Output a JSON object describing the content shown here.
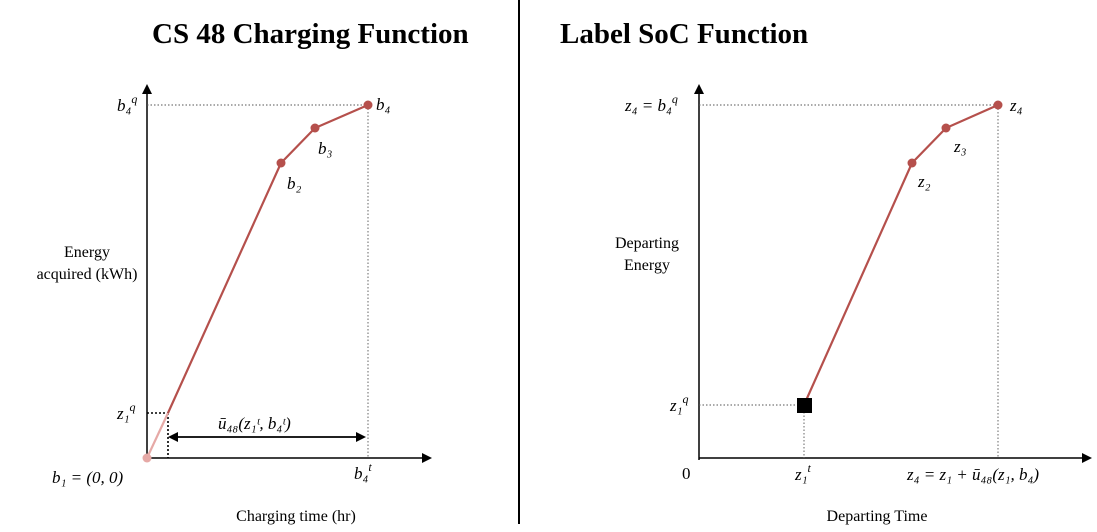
{
  "left_panel": {
    "title": "CS 48 Charging Function",
    "y_axis_label_line1": "Energy",
    "y_axis_label_line2": "acquired (kWh)",
    "x_axis_label": "Charging time (hr)",
    "origin_label": "b₁ = (0, 0)",
    "bar_label": "ū₄₈(z₁ᵗ, b₄ᵗ)",
    "y_tick": "z₁",
    "y_tick_sup": "q",
    "y_tick_top": "b₄",
    "y_tick_top_sup": "q",
    "x_tick": "b₄",
    "x_tick_sup": "t",
    "point_labels": [
      "b₂",
      "b₃",
      "b₄"
    ]
  },
  "right_panel": {
    "title": "Label SoC Function",
    "y_axis_label_line1": "Departing",
    "y_axis_label_line2": "Energy",
    "x_axis_label": "Departing Time",
    "origin_label": "0",
    "y_tick": "z₁",
    "y_tick_sup": "q",
    "y_tick_top": "z₄ = b₄",
    "x_tick": "z₁",
    "x_tick_sup": "t",
    "x_tick_right": "z₄ = z₁ + ū₄₈(z₁, b₄)",
    "point_labels": [
      "z₂",
      "z₃",
      "z₄"
    ]
  },
  "colors": {
    "curve": "#b5504c",
    "curve_light": "#e6a9a6",
    "marker": "#000000"
  }
}
